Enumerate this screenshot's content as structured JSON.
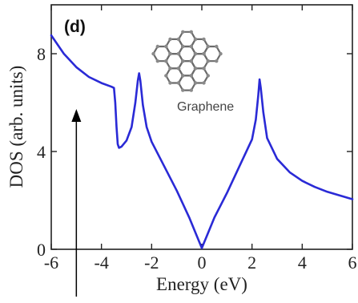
{
  "chart_data": {
    "type": "line",
    "panel_label": "(d)",
    "xlabel": "Energy (eV)",
    "ylabel": "DOS (arb. units)",
    "xlim": [
      -6,
      6
    ],
    "ylim": [
      0,
      10
    ],
    "xticks": [
      "-6",
      "-4",
      "-2",
      "0",
      "2",
      "4",
      "6"
    ],
    "yticks": [
      "0",
      "4",
      "8"
    ],
    "grid": false,
    "legend": "none",
    "inset_label": "Graphene",
    "inset_icon": "graphene-molecule-icon",
    "arrow_annotation_x": -5,
    "line_color": "#2a2ad6",
    "series": [
      {
        "x": [
          -6.0,
          -5.5,
          -5.0,
          -4.5,
          -4.0,
          -3.6,
          -3.5,
          -3.45,
          -3.4,
          -3.35,
          -3.3,
          -3.2,
          -3.0,
          -2.8,
          -2.65,
          -2.55,
          -2.5,
          -2.45,
          -2.35,
          -2.2,
          -2.0,
          -1.5,
          -1.0,
          -0.5,
          -0.2,
          0.0,
          0.2,
          0.5,
          1.0,
          1.5,
          2.0,
          2.15,
          2.25,
          2.3,
          2.35,
          2.45,
          2.6,
          3.0,
          3.5,
          4.0,
          4.5,
          5.0,
          5.5,
          6.0
        ],
        "y": [
          8.75,
          8.0,
          7.45,
          7.05,
          6.8,
          6.65,
          6.6,
          6.0,
          5.0,
          4.3,
          4.15,
          4.2,
          4.45,
          5.0,
          6.0,
          6.9,
          7.2,
          6.9,
          5.9,
          5.0,
          4.4,
          3.4,
          2.4,
          1.3,
          0.55,
          0.05,
          0.55,
          1.3,
          2.3,
          3.4,
          4.5,
          5.3,
          6.3,
          6.95,
          6.6,
          5.6,
          4.55,
          3.7,
          3.15,
          2.8,
          2.55,
          2.35,
          2.2,
          2.05
        ]
      }
    ]
  }
}
